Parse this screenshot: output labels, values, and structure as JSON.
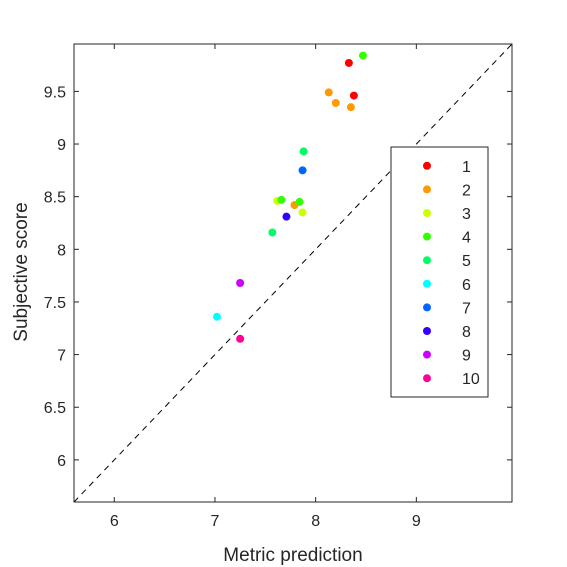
{
  "chart_data": {
    "type": "scatter",
    "title": "",
    "xlabel": "Metric prediction",
    "ylabel": "Subjective score",
    "xlim": [
      5.6,
      9.95
    ],
    "ylim": [
      5.6,
      9.95
    ],
    "xticks": [
      6,
      7,
      8,
      9
    ],
    "yticks": [
      6,
      6.5,
      7,
      7.5,
      8,
      8.5,
      9,
      9.5
    ],
    "xtick_labels": [
      "6",
      "7",
      "8",
      "9"
    ],
    "ytick_labels": [
      "6",
      "6.5",
      "7",
      "7.5",
      "8",
      "8.5",
      "9",
      "9.5"
    ],
    "grid": false,
    "reference_line": "y = x (dashed)",
    "legend_position": "right",
    "series": [
      {
        "name": "1",
        "color": "#ff0000",
        "points": [
          [
            8.33,
            9.77
          ],
          [
            8.38,
            9.46
          ]
        ]
      },
      {
        "name": "2",
        "color": "#ff9900",
        "points": [
          [
            8.13,
            9.49
          ],
          [
            8.2,
            9.39
          ],
          [
            8.35,
            9.35
          ],
          [
            7.79,
            8.42
          ]
        ]
      },
      {
        "name": "3",
        "color": "#ccff00",
        "points": [
          [
            7.62,
            8.46
          ],
          [
            7.87,
            8.35
          ]
        ]
      },
      {
        "name": "4",
        "color": "#33ff00",
        "points": [
          [
            8.47,
            9.84
          ],
          [
            7.66,
            8.47
          ],
          [
            7.84,
            8.45
          ]
        ]
      },
      {
        "name": "5",
        "color": "#00ff66",
        "points": [
          [
            7.88,
            8.93
          ],
          [
            7.57,
            8.16
          ]
        ]
      },
      {
        "name": "6",
        "color": "#00ffff",
        "points": [
          [
            7.02,
            7.36
          ]
        ]
      },
      {
        "name": "7",
        "color": "#0066ff",
        "points": [
          [
            7.87,
            8.75
          ]
        ]
      },
      {
        "name": "8",
        "color": "#3300ff",
        "points": [
          [
            7.71,
            8.31
          ]
        ]
      },
      {
        "name": "9",
        "color": "#cc00ff",
        "points": [
          [
            7.25,
            7.68
          ]
        ]
      },
      {
        "name": "10",
        "color": "#ff0099",
        "points": [
          [
            7.25,
            7.15
          ]
        ]
      }
    ]
  }
}
